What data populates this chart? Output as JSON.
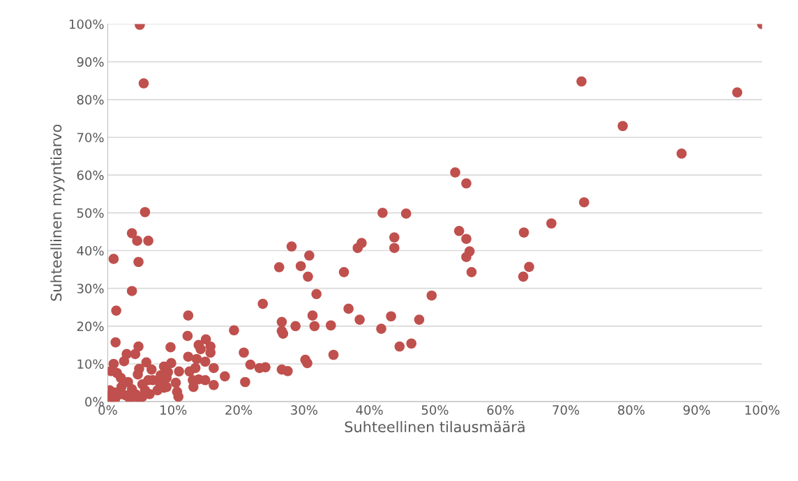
{
  "chart_data": {
    "type": "scatter",
    "xlabel": "Suhteellinen tilausmäärä",
    "ylabel": "Suhteellinen myyntiarvo",
    "xlim": [
      0,
      100
    ],
    "ylim": [
      0,
      100
    ],
    "grid": "y",
    "marker": "circle",
    "xticks": [
      {
        "value": 0,
        "label": "0%"
      },
      {
        "value": 10,
        "label": "10%"
      },
      {
        "value": 20,
        "label": "20%"
      },
      {
        "value": 30,
        "label": "30%"
      },
      {
        "value": 40,
        "label": "40%"
      },
      {
        "value": 50,
        "label": "50%"
      },
      {
        "value": 60,
        "label": "60%"
      },
      {
        "value": 70,
        "label": "70%"
      },
      {
        "value": 80,
        "label": "80%"
      },
      {
        "value": 90,
        "label": "90%"
      },
      {
        "value": 100,
        "label": "100%"
      }
    ],
    "yticks": [
      {
        "value": 0,
        "label": "0%"
      },
      {
        "value": 10,
        "label": "10%"
      },
      {
        "value": 20,
        "label": "20%"
      },
      {
        "value": 30,
        "label": "30%"
      },
      {
        "value": 40,
        "label": "40%"
      },
      {
        "value": 50,
        "label": "50%"
      },
      {
        "value": 60,
        "label": "60%"
      },
      {
        "value": 70,
        "label": "70%"
      },
      {
        "value": 80,
        "label": "80%"
      },
      {
        "value": 90,
        "label": "90%"
      },
      {
        "value": 100,
        "label": "100%"
      }
    ],
    "series": [
      {
        "color": "#c0504d",
        "x": [
          4.9,
          5.5,
          100,
          72.4,
          96.2,
          78.7,
          87.7,
          72.8,
          67.8,
          53.1,
          54.8,
          63.6,
          64.4,
          63.5,
          53.7,
          54.8,
          55.3,
          54.8,
          55.6,
          42,
          45.6,
          43.8,
          43.8,
          38.8,
          38.2,
          36.1,
          28.1,
          30.8,
          29.5,
          26.2,
          30.6,
          31.9,
          49.5,
          23.7,
          36.8,
          31.3,
          43.3,
          47.6,
          38.5,
          26.6,
          31.6,
          34.1,
          28.7,
          41.8,
          26.6,
          26.8,
          19.3,
          12.3,
          12.2,
          46.4,
          44.6,
          34.5,
          20.8,
          30.2,
          30.5,
          21.8,
          23.2,
          24.1,
          21,
          17.9,
          16.2,
          26.6,
          27.5,
          15.7,
          15,
          13.9,
          14.2,
          15.7,
          13.6,
          14.9,
          16.2,
          12.3,
          12.5,
          13.4,
          13,
          13.9,
          14.9,
          13.1,
          10.9,
          9.6,
          9.7,
          10.4,
          10.6,
          10.8,
          8.6,
          9.2,
          9,
          8.1,
          7.9,
          8.6,
          6.7,
          5.9,
          6.9,
          6.2,
          5.3,
          6.4,
          4.8,
          4.6,
          4.7,
          4.2,
          2.9,
          2.5,
          1.2,
          1.3,
          0.9,
          0.9,
          0.5,
          1.4,
          2.0,
          2.1,
          3.1,
          3.7,
          4.3,
          4.8,
          5.3,
          3.4,
          2.7,
          1.8,
          1.1,
          0.3,
          0.3,
          0.3,
          1.1,
          7.6,
          5.7,
          3.7,
          4.5,
          6.2,
          4.7,
          5.7,
          3.7,
          9.0
        ],
        "values": [
          99.8,
          84.3,
          100,
          84.8,
          81.9,
          73,
          65.7,
          52.8,
          47.2,
          60.7,
          57.8,
          44.8,
          35.7,
          33.1,
          45.2,
          43.1,
          39.8,
          38.3,
          34.3,
          50,
          49.8,
          43.5,
          40.7,
          42,
          40.7,
          34.3,
          41.1,
          38.7,
          35.9,
          35.6,
          33.1,
          28.5,
          28.1,
          25.9,
          24.6,
          22.8,
          22.6,
          21.7,
          21.7,
          21.1,
          20,
          20.2,
          20,
          19.3,
          18.7,
          18,
          18.9,
          22.8,
          17.4,
          15.4,
          14.6,
          12.4,
          13,
          11.1,
          10.2,
          9.8,
          8.9,
          9.1,
          5.2,
          6.7,
          4.4,
          8.5,
          8.1,
          14.6,
          16.5,
          15,
          13.9,
          13,
          11.3,
          10.6,
          8.9,
          11.9,
          8,
          8.9,
          5.7,
          5.9,
          5.7,
          3.9,
          8,
          14.4,
          10.2,
          5,
          2.6,
          1.3,
          9.3,
          7.8,
          6.3,
          7,
          5.2,
          3.7,
          8.5,
          10.4,
          5.7,
          5.7,
          4.6,
          2,
          8.7,
          7.2,
          14.6,
          12.6,
          12.6,
          10.7,
          15.7,
          24.1,
          37.8,
          10,
          8.1,
          7.6,
          6.3,
          3.9,
          5.2,
          3.3,
          1.9,
          0.7,
          1.3,
          0.7,
          1.7,
          1.9,
          0.6,
          0.4,
          3,
          1.5,
          2.4,
          3,
          3,
          44.6,
          42.6,
          42.6,
          37,
          50.2,
          29.3,
          3.9
        ]
      }
    ]
  }
}
